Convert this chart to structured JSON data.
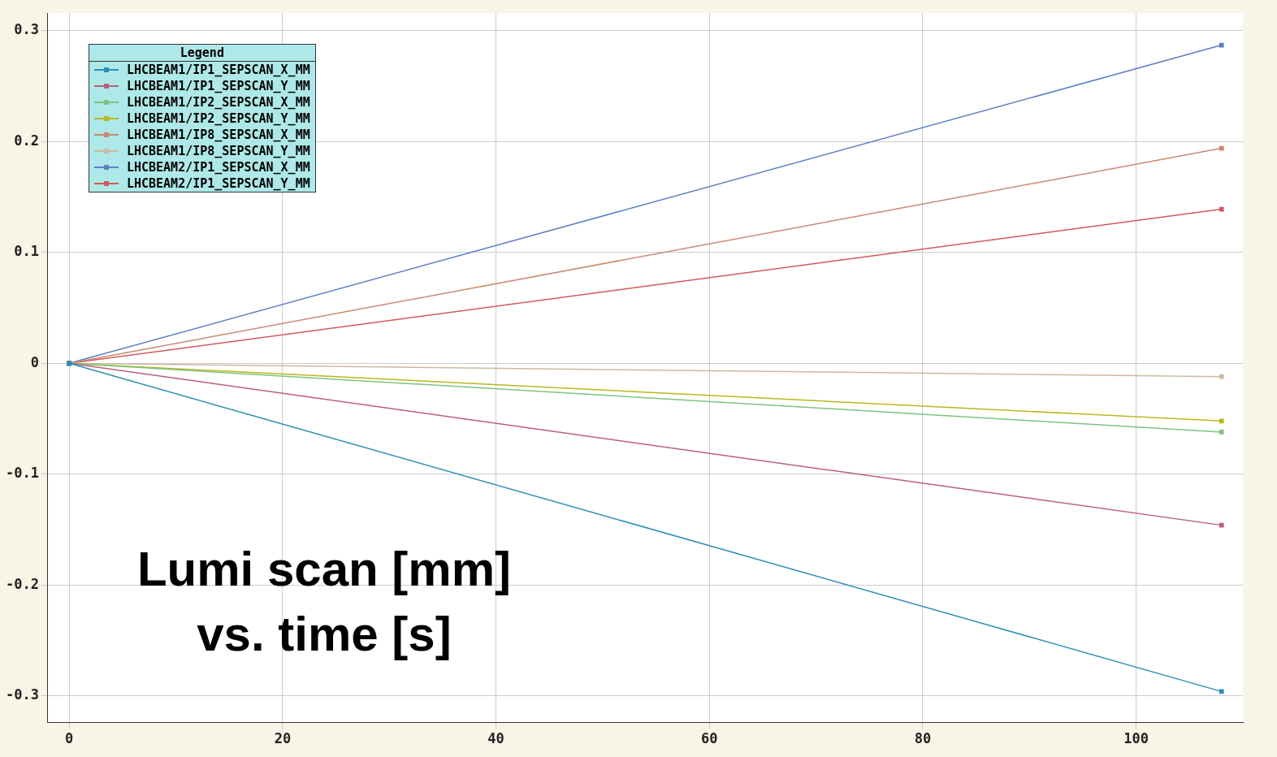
{
  "chart_data": {
    "type": "line",
    "legend_title": "Legend",
    "legend": "top left",
    "grid": true,
    "marker": "square",
    "line_style": "solid",
    "annotations": [
      "Lumi scan [mm] vs. time [s]"
    ],
    "xlim": [
      -2,
      110
    ],
    "xticks": [
      0,
      20,
      40,
      60,
      80,
      100
    ],
    "ylim": [
      -0.324,
      0.316
    ],
    "yticks": [
      -0.3,
      -0.2,
      -0.1,
      0,
      0.1,
      0.2,
      0.3
    ],
    "x": [
      0,
      108
    ],
    "series": [
      {
        "name": "LHCBEAM1/IP1_SEPSCAN_X_MM",
        "color": "#2a8fb8",
        "values": [
          0,
          -0.296
        ]
      },
      {
        "name": "LHCBEAM1/IP1_SEPSCAN_Y_MM",
        "color": "#b8607a",
        "values": [
          0,
          -0.146
        ]
      },
      {
        "name": "LHCBEAM1/IP2_SEPSCAN_X_MM",
        "color": "#7fc27f",
        "values": [
          0,
          -0.062
        ]
      },
      {
        "name": "LHCBEAM1/IP2_SEPSCAN_Y_MM",
        "color": "#b8b820",
        "values": [
          0,
          -0.052
        ]
      },
      {
        "name": "LHCBEAM1/IP8_SEPSCAN_X_MM",
        "color": "#c98a70",
        "values": [
          0,
          0.194
        ]
      },
      {
        "name": "LHCBEAM1/IP8_SEPSCAN_Y_MM",
        "color": "#cdb9a0",
        "values": [
          0,
          -0.012
        ]
      },
      {
        "name": "LHCBEAM2/IP1_SEPSCAN_X_MM",
        "color": "#5d7fc4",
        "values": [
          0,
          0.287
        ]
      },
      {
        "name": "LHCBEAM2/IP1_SEPSCAN_Y_MM",
        "color": "#d05a5a",
        "values": [
          0,
          0.139
        ]
      }
    ]
  }
}
